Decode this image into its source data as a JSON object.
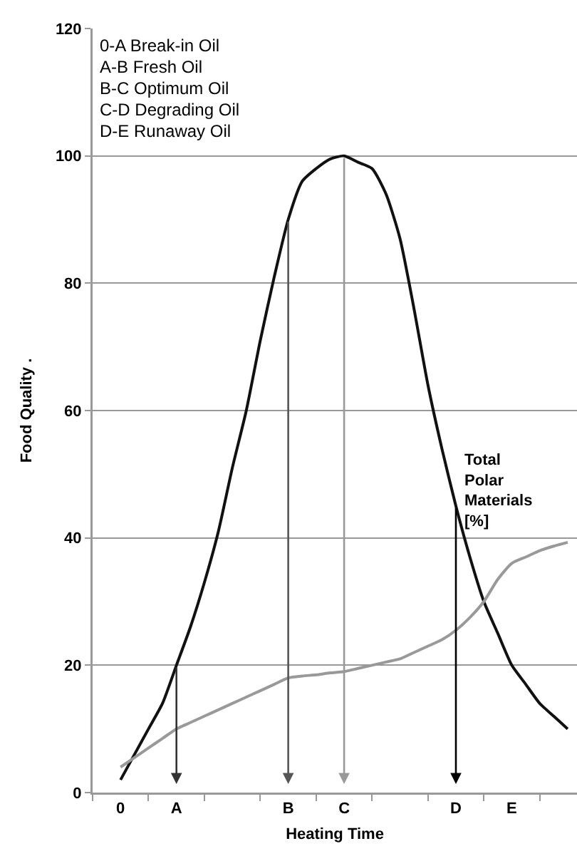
{
  "chart_data": {
    "type": "line",
    "xlabel": "Heating Time",
    "ylabel": "Food Quality .",
    "categories": [
      "0",
      null,
      null,
      null,
      "A",
      null,
      null,
      null,
      null,
      null,
      null,
      null,
      "B",
      null,
      null,
      null,
      "C",
      null,
      null,
      null,
      null,
      null,
      null,
      null,
      "D",
      null,
      null,
      null,
      "E",
      null,
      null,
      null,
      null
    ],
    "ylim": [
      0,
      120
    ],
    "yticks": [
      0,
      20,
      40,
      60,
      80,
      100,
      120
    ],
    "grid": "y",
    "legend": false,
    "marker": "none",
    "line_style": "solid",
    "series": [
      {
        "color": "#111111",
        "values": [
          2,
          6,
          10,
          14,
          20,
          26,
          33,
          41,
          51,
          60,
          71,
          81,
          90,
          96,
          98,
          99.5,
          100,
          99,
          98,
          94,
          87,
          76,
          64,
          54,
          45,
          37,
          30,
          25,
          20,
          17,
          14,
          12,
          10
        ]
      },
      {
        "name": "Total Polar Materials [%]",
        "color": "#999999",
        "values": [
          4,
          5.5,
          7,
          8.5,
          10,
          11,
          12,
          13,
          14,
          15,
          16,
          17,
          18,
          18.3,
          18.5,
          18.8,
          19,
          19.5,
          20,
          20.5,
          21,
          22,
          23,
          24,
          25.5,
          27.5,
          30,
          33.5,
          36,
          37,
          38,
          38.7,
          39.3
        ]
      }
    ],
    "ref_lines": [
      {
        "axis": "x",
        "value": "A",
        "color": "#333333"
      },
      {
        "axis": "x",
        "value": "B",
        "color": "#555555"
      },
      {
        "axis": "x",
        "value": "C",
        "color": "#999999"
      },
      {
        "axis": "x",
        "value": "D",
        "color": "#000000"
      }
    ],
    "annotations": [
      "0-A Break-in Oil",
      "A-B Fresh Oil",
      "B-C Optimum Oil",
      "C-D Degrading Oil",
      "D-E Runaway Oil"
    ]
  }
}
